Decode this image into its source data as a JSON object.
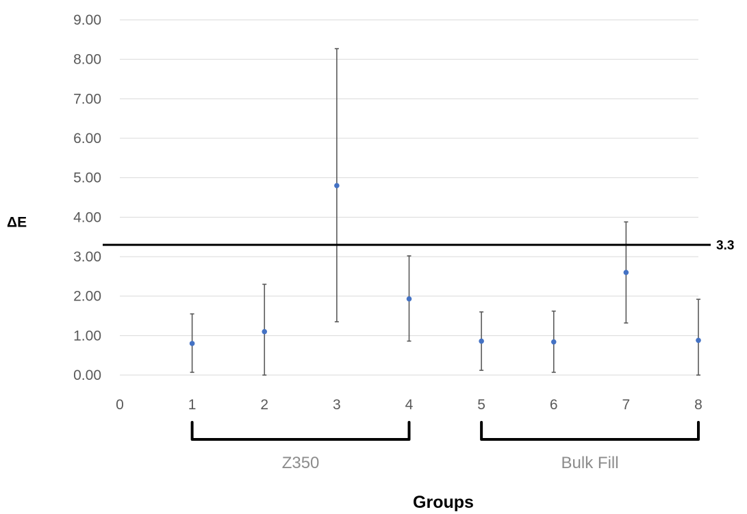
{
  "chart_data": {
    "type": "scatter",
    "title": "",
    "xlabel": "Groups",
    "ylabel": "ΔE",
    "xlim": [
      0,
      8
    ],
    "ylim": [
      0,
      9
    ],
    "x_ticks": [
      "0",
      "1",
      "2",
      "3",
      "4",
      "5",
      "6",
      "7",
      "8"
    ],
    "y_ticks": [
      "0.00",
      "1.00",
      "2.00",
      "3.00",
      "4.00",
      "5.00",
      "6.00",
      "7.00",
      "8.00",
      "9.00"
    ],
    "grid": true,
    "legend": "none",
    "series": [
      {
        "x": [
          1,
          2,
          3,
          4,
          5,
          6,
          7,
          8
        ],
        "y": [
          0.8,
          1.1,
          4.8,
          1.93,
          0.86,
          0.84,
          2.6,
          0.88
        ],
        "err_low": [
          0.07,
          0.0,
          1.35,
          0.86,
          0.12,
          0.07,
          1.32,
          0.0
        ],
        "err_high": [
          1.55,
          2.3,
          8.27,
          3.02,
          1.6,
          1.62,
          3.88,
          1.92
        ]
      }
    ],
    "reference_line": {
      "value": 3.3,
      "label": "3.3"
    },
    "group_brackets": [
      {
        "from": 1,
        "to": 4,
        "label": "Z350"
      },
      {
        "from": 5,
        "to": 8,
        "label": "Bulk Fill"
      }
    ],
    "colors": {
      "marker": "#4472c4",
      "error_bar": "#595959",
      "grid": "#d9d9d9",
      "reference": "#000000"
    }
  }
}
